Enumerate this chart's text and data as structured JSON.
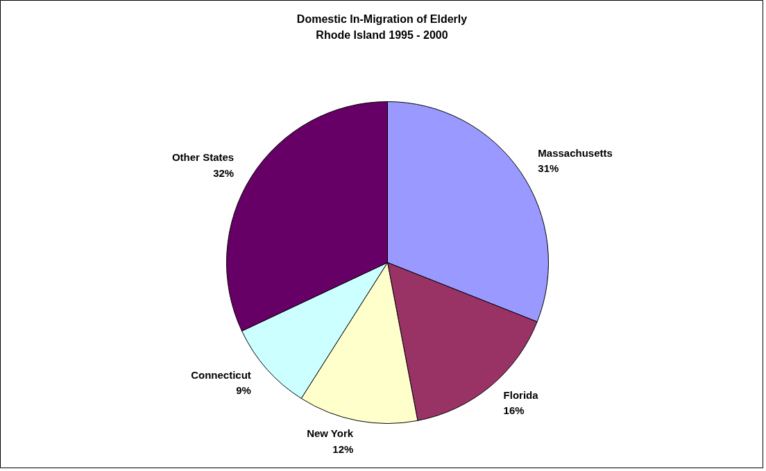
{
  "chart_data": {
    "type": "pie",
    "title": "Domestic In-Migration of Elderly\nRhode Island 1995 - 2000",
    "categories": [
      "Massachusetts",
      "Florida",
      "New York",
      "Connecticut",
      "Other States"
    ],
    "values": [
      31,
      16,
      12,
      9,
      32
    ],
    "colors": [
      "#9999ff",
      "#993366",
      "#ffffcc",
      "#ccffff",
      "#660066"
    ],
    "value_labels": [
      "31%",
      "16%",
      "12%",
      "9%",
      "32%"
    ]
  }
}
